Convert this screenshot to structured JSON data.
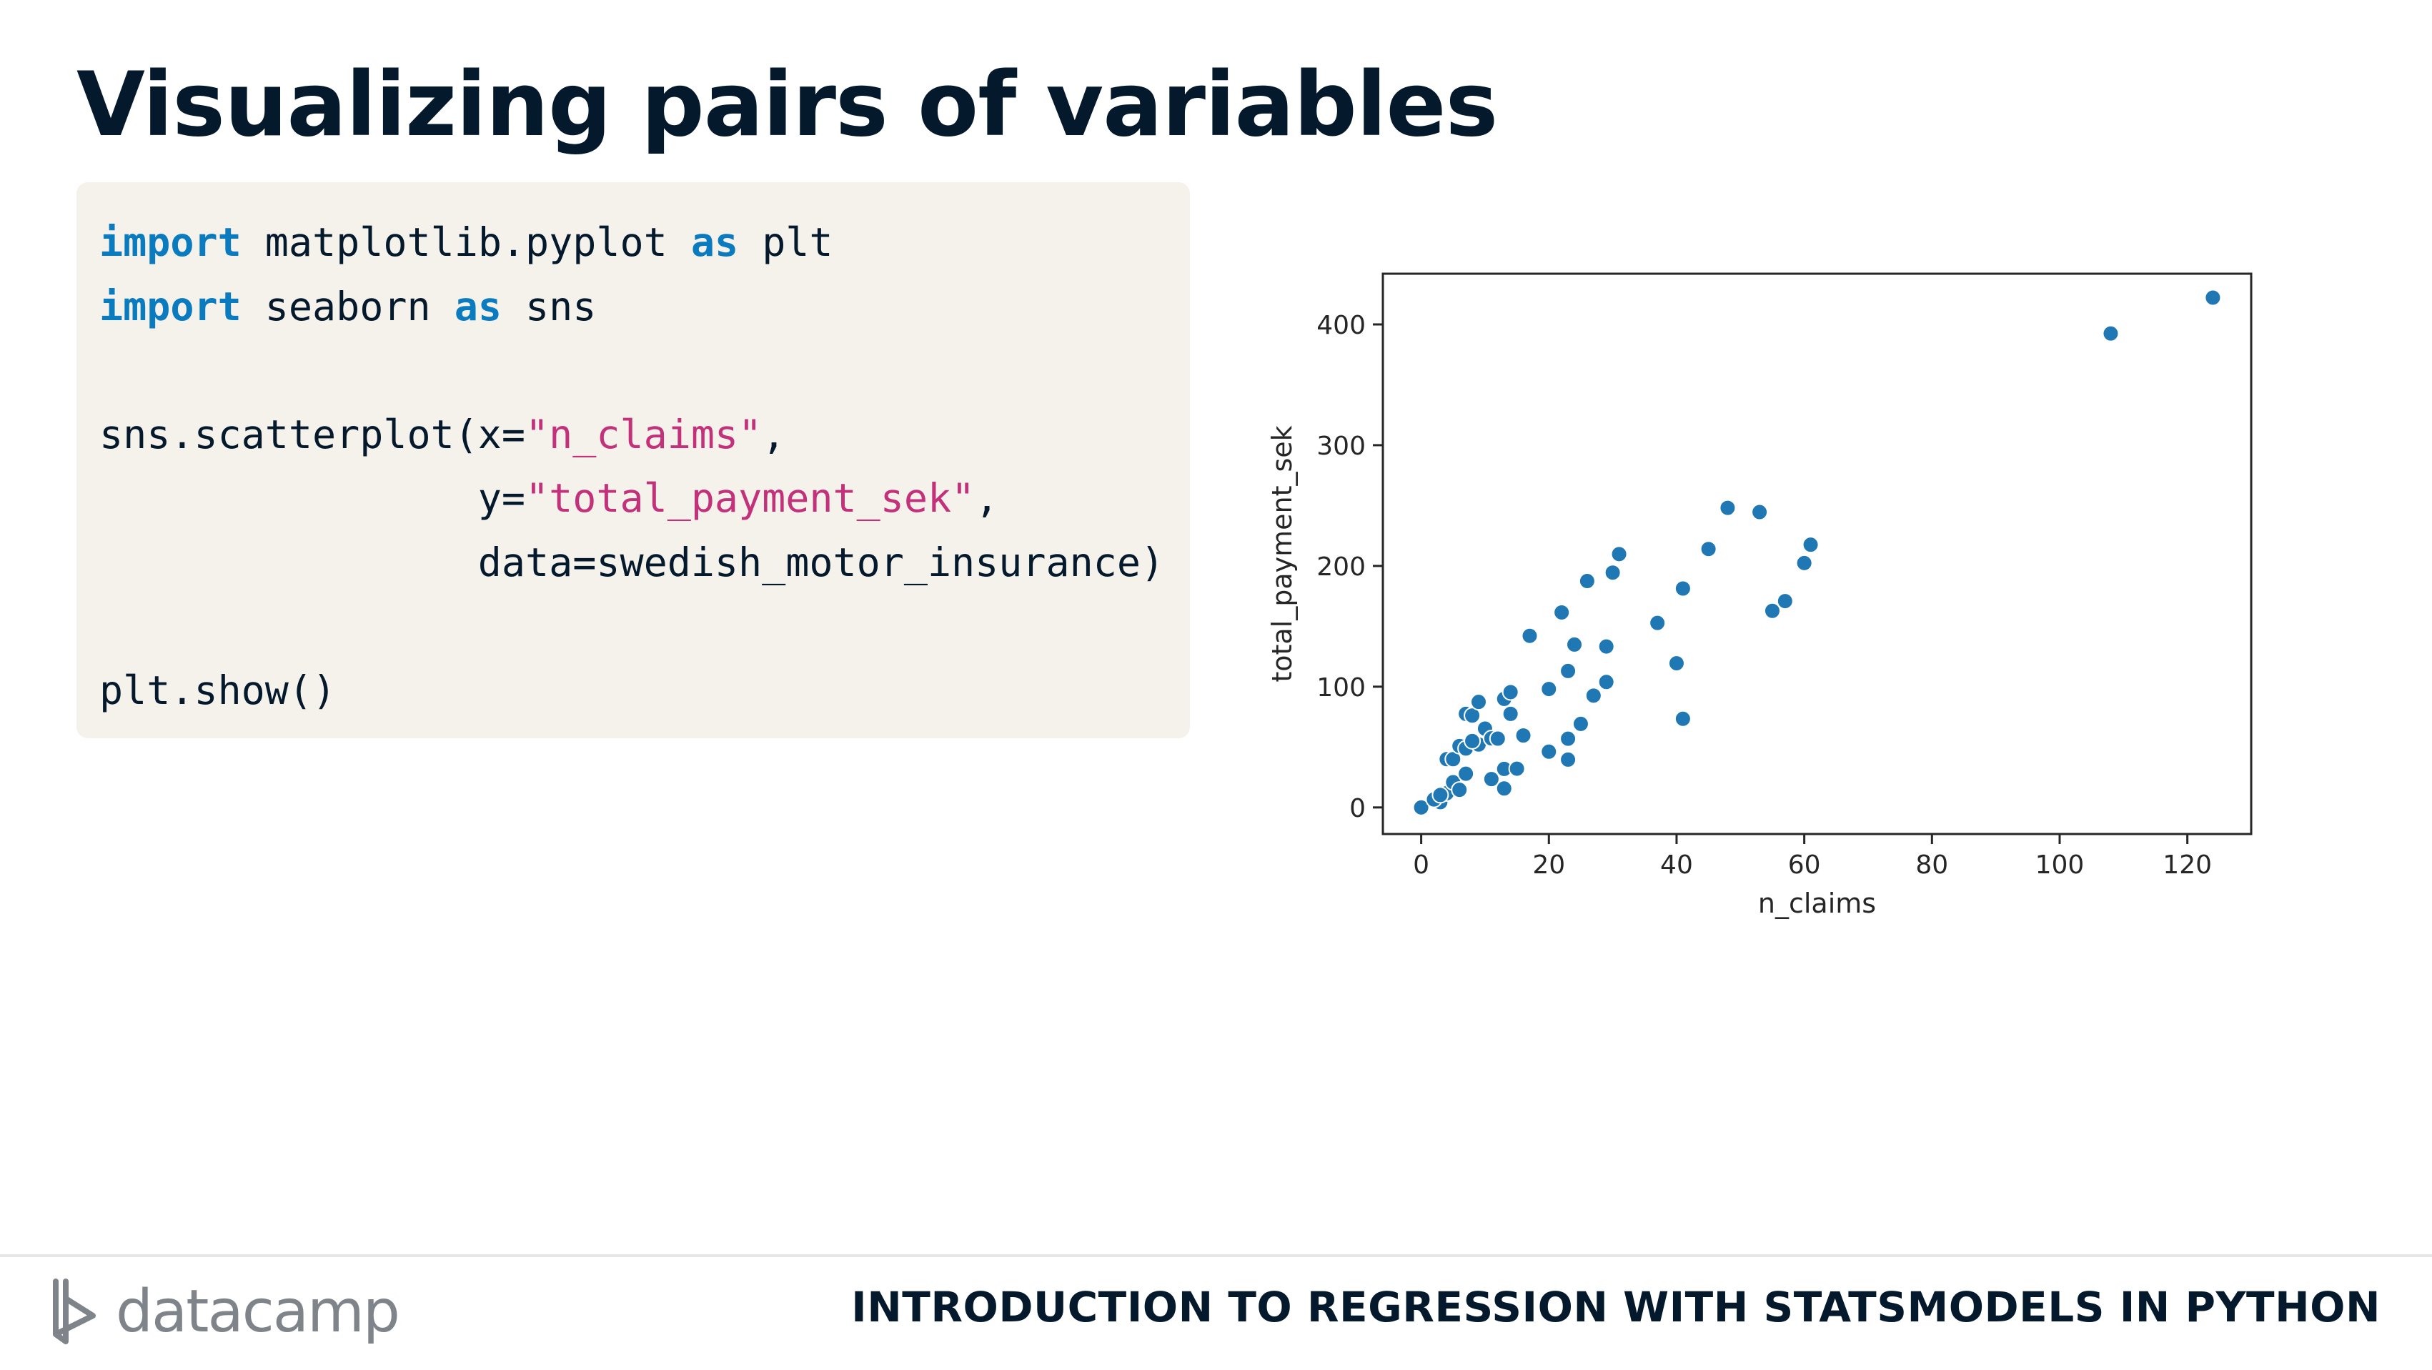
{
  "slide": {
    "title": "Visualizing pairs of variables"
  },
  "code": {
    "lines": [
      [
        {
          "t": "import",
          "c": "kw"
        },
        {
          "t": " matplotlib.pyplot "
        },
        {
          "t": "as",
          "c": "kw"
        },
        {
          "t": " plt"
        }
      ],
      [
        {
          "t": "import",
          "c": "kw"
        },
        {
          "t": " seaborn "
        },
        {
          "t": "as",
          "c": "kw"
        },
        {
          "t": " sns"
        }
      ],
      [],
      [
        {
          "t": "sns.scatterplot(x="
        },
        {
          "t": "\"n_claims\"",
          "c": "str"
        },
        {
          "t": ","
        }
      ],
      [
        {
          "t": "                y="
        },
        {
          "t": "\"total_payment_sek\"",
          "c": "str"
        },
        {
          "t": ","
        }
      ],
      [
        {
          "t": "                data=swedish_motor_insurance)"
        }
      ],
      [],
      [
        {
          "t": "plt.show()"
        }
      ]
    ]
  },
  "chart_data": {
    "type": "scatter",
    "xlabel": "n_claims",
    "ylabel": "total_payment_sek",
    "xlim": [
      -6,
      130
    ],
    "ylim": [
      -22,
      442
    ],
    "xticks": [
      0,
      20,
      40,
      60,
      80,
      100,
      120
    ],
    "yticks": [
      0,
      100,
      200,
      300,
      400
    ],
    "color": "#1f77b4",
    "points": [
      [
        108,
        392.5
      ],
      [
        124,
        422.2
      ],
      [
        0,
        0
      ],
      [
        3,
        4.4
      ],
      [
        2,
        6.6
      ],
      [
        4,
        11.8
      ],
      [
        5,
        20.9
      ],
      [
        3,
        10.3
      ],
      [
        4,
        40.0
      ],
      [
        5,
        40.0
      ],
      [
        6,
        14.6
      ],
      [
        6,
        50.9
      ],
      [
        7,
        27.9
      ],
      [
        7,
        48.8
      ],
      [
        7,
        77.5
      ],
      [
        8,
        76.1
      ],
      [
        9,
        52.1
      ],
      [
        9,
        87.4
      ],
      [
        8,
        55.0
      ],
      [
        10,
        65.3
      ],
      [
        11,
        57.2
      ],
      [
        11,
        23.5
      ],
      [
        12,
        57.0
      ],
      [
        13,
        31.9
      ],
      [
        13,
        89.9
      ],
      [
        13,
        15.7
      ],
      [
        14,
        95.5
      ],
      [
        14,
        77.5
      ],
      [
        15,
        32.1
      ],
      [
        16,
        59.6
      ],
      [
        17,
        142.1
      ],
      [
        20,
        46.2
      ],
      [
        20,
        98.1
      ],
      [
        22,
        161.5
      ],
      [
        23,
        113.0
      ],
      [
        23,
        56.9
      ],
      [
        23,
        39.6
      ],
      [
        24,
        134.9
      ],
      [
        25,
        69.2
      ],
      [
        26,
        187.5
      ],
      [
        27,
        92.6
      ],
      [
        29,
        133.3
      ],
      [
        29,
        103.9
      ],
      [
        30,
        194.5
      ],
      [
        31,
        209.8
      ],
      [
        37,
        152.8
      ],
      [
        40,
        119.4
      ],
      [
        41,
        181.3
      ],
      [
        41,
        73.4
      ],
      [
        45,
        214.0
      ],
      [
        48,
        248.1
      ],
      [
        53,
        244.6
      ],
      [
        55,
        162.8
      ],
      [
        57,
        170.9
      ],
      [
        60,
        202.4
      ],
      [
        61,
        217.6
      ]
    ]
  },
  "footer": {
    "logo_text": "datacamp",
    "course_title": "INTRODUCTION TO REGRESSION WITH STATSMODELS IN PYTHON"
  }
}
